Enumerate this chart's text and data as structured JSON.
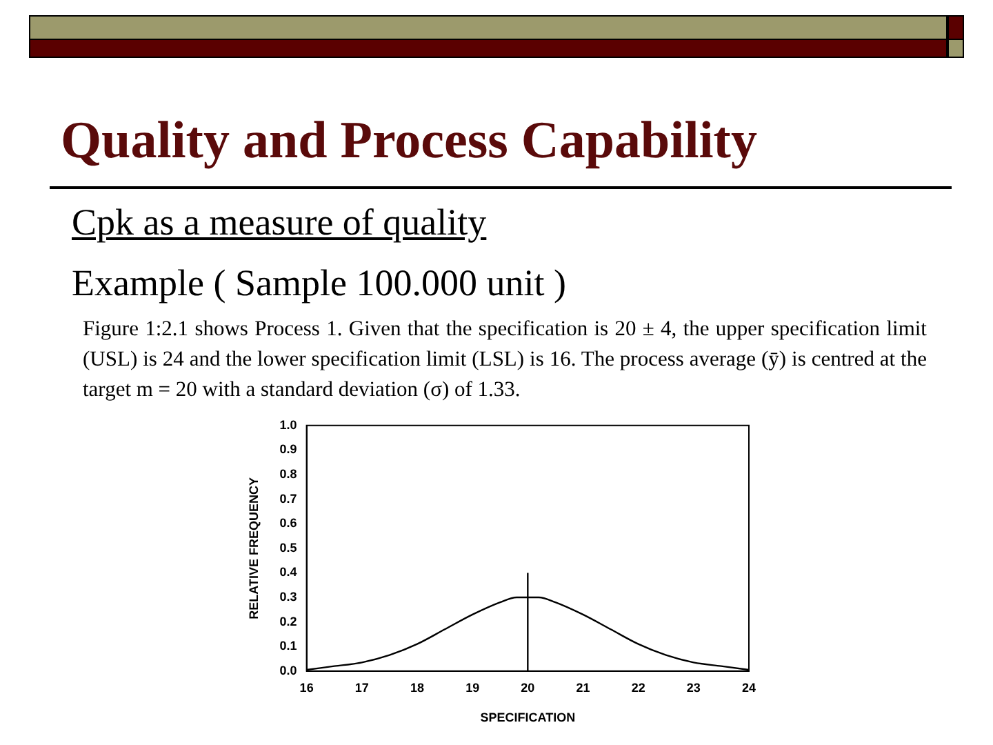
{
  "chart_data": {
    "type": "line",
    "title": "Quality and Process Capability",
    "subtitle": "Cpk as a measure of quality",
    "annotations": [
      "Example ( Sample 100.000 unit )",
      "Figure 1:2.1 shows Process 1. Given that the specification is 20 ± 4, the upper specification limit (USL) is 24 and the lower specification limit (LSL) is 16. The process average (ȳ) is centred at the target m = 20 with a standard deviation (σ) of 1.33."
    ],
    "xlabel": "SPECIFICATION",
    "ylabel": "RELATIVE FREQUENCY",
    "series": [
      {
        "color": "#000000",
        "x": [
          16,
          16.5,
          17,
          17.5,
          18,
          18.5,
          19,
          19.5,
          19.8,
          20.2,
          20.5,
          21,
          21.5,
          22,
          22.5,
          23,
          23.5,
          24
        ],
        "values": [
          0.005,
          0.02,
          0.035,
          0.065,
          0.11,
          0.17,
          0.23,
          0.28,
          0.3,
          0.3,
          0.28,
          0.23,
          0.17,
          0.11,
          0.065,
          0.035,
          0.02,
          0.005
        ]
      },
      {
        "color": "#000000",
        "x": [
          20,
          20
        ],
        "values": [
          0,
          0.4
        ]
      }
    ],
    "xlim": [
      16,
      24
    ],
    "xticks": [
      16,
      17,
      18,
      19,
      20,
      21,
      22,
      23,
      24
    ],
    "ylim": [
      0,
      1
    ],
    "yticks": [
      {
        "value": 0,
        "label": "0.0"
      },
      0.1,
      0.2,
      0.3,
      0.4,
      0.5,
      0.6,
      0.7,
      0.8,
      0.9,
      {
        "value": 1,
        "label": "1.0"
      }
    ],
    "grid": false,
    "legend": false,
    "marker": "none",
    "line_style": "solid"
  }
}
